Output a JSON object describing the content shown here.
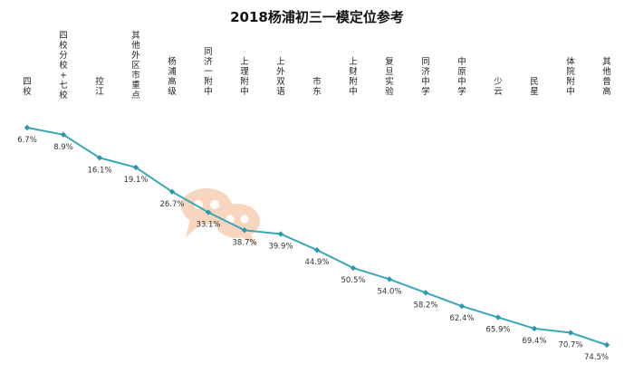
{
  "chart_data": {
    "type": "line",
    "title": "2018杨浦初三一模定位参考",
    "xlabel": "",
    "ylabel": "",
    "categories": [
      "四校",
      "四校分校+七校",
      "控江",
      "其他外区市重点",
      "杨浦高级",
      "同济一附中",
      "上理附中",
      "上外双语",
      "市东",
      "上财附中",
      "复旦实验",
      "同济中学",
      "中原中学",
      "少云",
      "民星",
      "体院附中",
      "其他普高"
    ],
    "series": [
      {
        "values": [
          6.7,
          8.9,
          16.1,
          19.1,
          26.7,
          33.1,
          38.7,
          39.9,
          44.9,
          50.5,
          54.0,
          58.2,
          62.4,
          65.9,
          69.4,
          70.7,
          74.5
        ],
        "labels": [
          "6.7%",
          "8.9%",
          "16.1%",
          "19.1%",
          "26.7%",
          "33.1%",
          "38.7%",
          "39.9%",
          "44.9%",
          "50.5%",
          "54.0%",
          "58.2%",
          "62.4%",
          "65.9%",
          "69.4%",
          "70.7%",
          "74.5%"
        ]
      }
    ],
    "y_axis": "inverted percent, no visible ticks",
    "ylim": [
      0,
      80
    ],
    "grid": false,
    "legend": "none",
    "line_color": "#3aa6b9",
    "marker_color": "#2f97ab",
    "watermark_color": "#f3b48a"
  }
}
